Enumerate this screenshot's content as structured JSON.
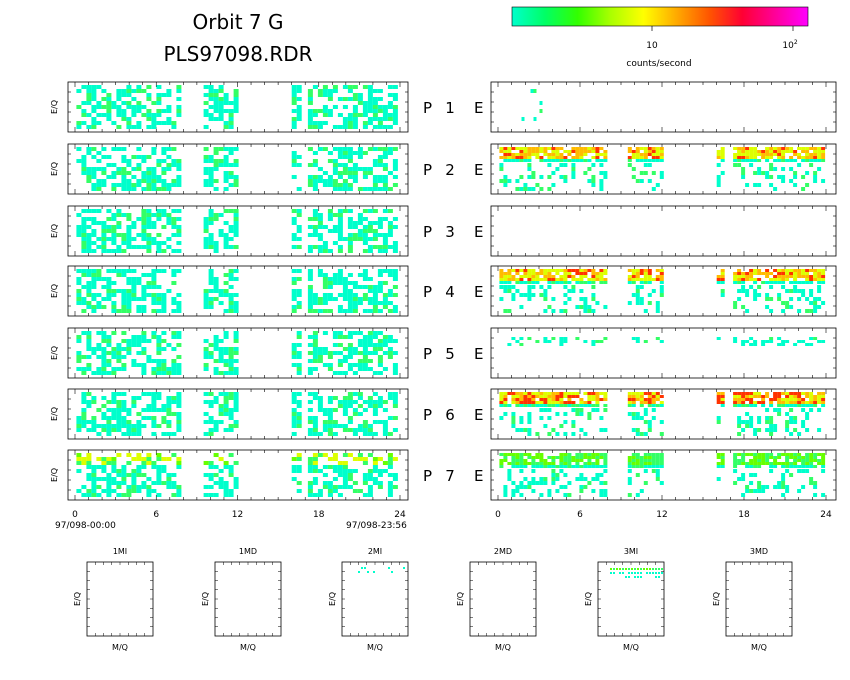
{
  "header": {
    "title_line1": "Orbit 7 G",
    "title_line2": "PLS97098.RDR"
  },
  "colorbar": {
    "colors": [
      "#00ffcc",
      "#00ff66",
      "#33ff00",
      "#aaff00",
      "#ffff00",
      "#ffaa00",
      "#ff5500",
      "#ff0033",
      "#ff0099",
      "#ff00ff"
    ],
    "tick1": "10",
    "tick2_base": "10",
    "tick2_exp": "2",
    "unit_label": "counts/second",
    "scale": "log"
  },
  "panels": {
    "ylabel": "E/Q",
    "left_suffix": "P",
    "right_suffix": "E",
    "rows": [
      {
        "index": "1",
        "left_band": "none",
        "right_activity": "sparse"
      },
      {
        "index": "2",
        "left_band": "none",
        "right_activity": "band-top"
      },
      {
        "index": "3",
        "left_band": "none",
        "right_activity": "empty"
      },
      {
        "index": "4",
        "left_band": "none",
        "right_activity": "band-top"
      },
      {
        "index": "5",
        "left_band": "none",
        "right_activity": "sparse-band"
      },
      {
        "index": "6",
        "left_band": "none",
        "right_activity": "band-top-strong"
      },
      {
        "index": "7",
        "left_band": "top",
        "right_activity": "band-top-weak"
      }
    ]
  },
  "time_axis": {
    "xlim": [
      0,
      24
    ],
    "ticks": [
      "0",
      "6",
      "12",
      "18",
      "24"
    ],
    "start_label": "97/098-00:00",
    "end_label": "97/098-23:56"
  },
  "mq_panels": {
    "xlabel": "M/Q",
    "ylabel": "E/Q",
    "titles": [
      "1MI",
      "1MD",
      "2MI",
      "2MD",
      "3MI",
      "3MD"
    ]
  },
  "chart_data": {
    "type": "heatmap",
    "title": "Orbit 7 G PLS97098.RDR",
    "colorbar_label": "counts/second",
    "colorbar_ticks": [
      "10",
      "10^2"
    ],
    "x_range_hours": [
      0,
      24
    ],
    "data_gaps_hours": [
      [
        8,
        9.5
      ],
      [
        12,
        17
      ]
    ],
    "panels": [
      "P 1 E",
      "P 2 E",
      "P 3 E",
      "P 4 E",
      "P 5 E",
      "P 6 E",
      "P 7 E"
    ],
    "mq_panels": [
      "1MI",
      "1MD",
      "2MI",
      "2MD",
      "3MI",
      "3MD"
    ]
  }
}
